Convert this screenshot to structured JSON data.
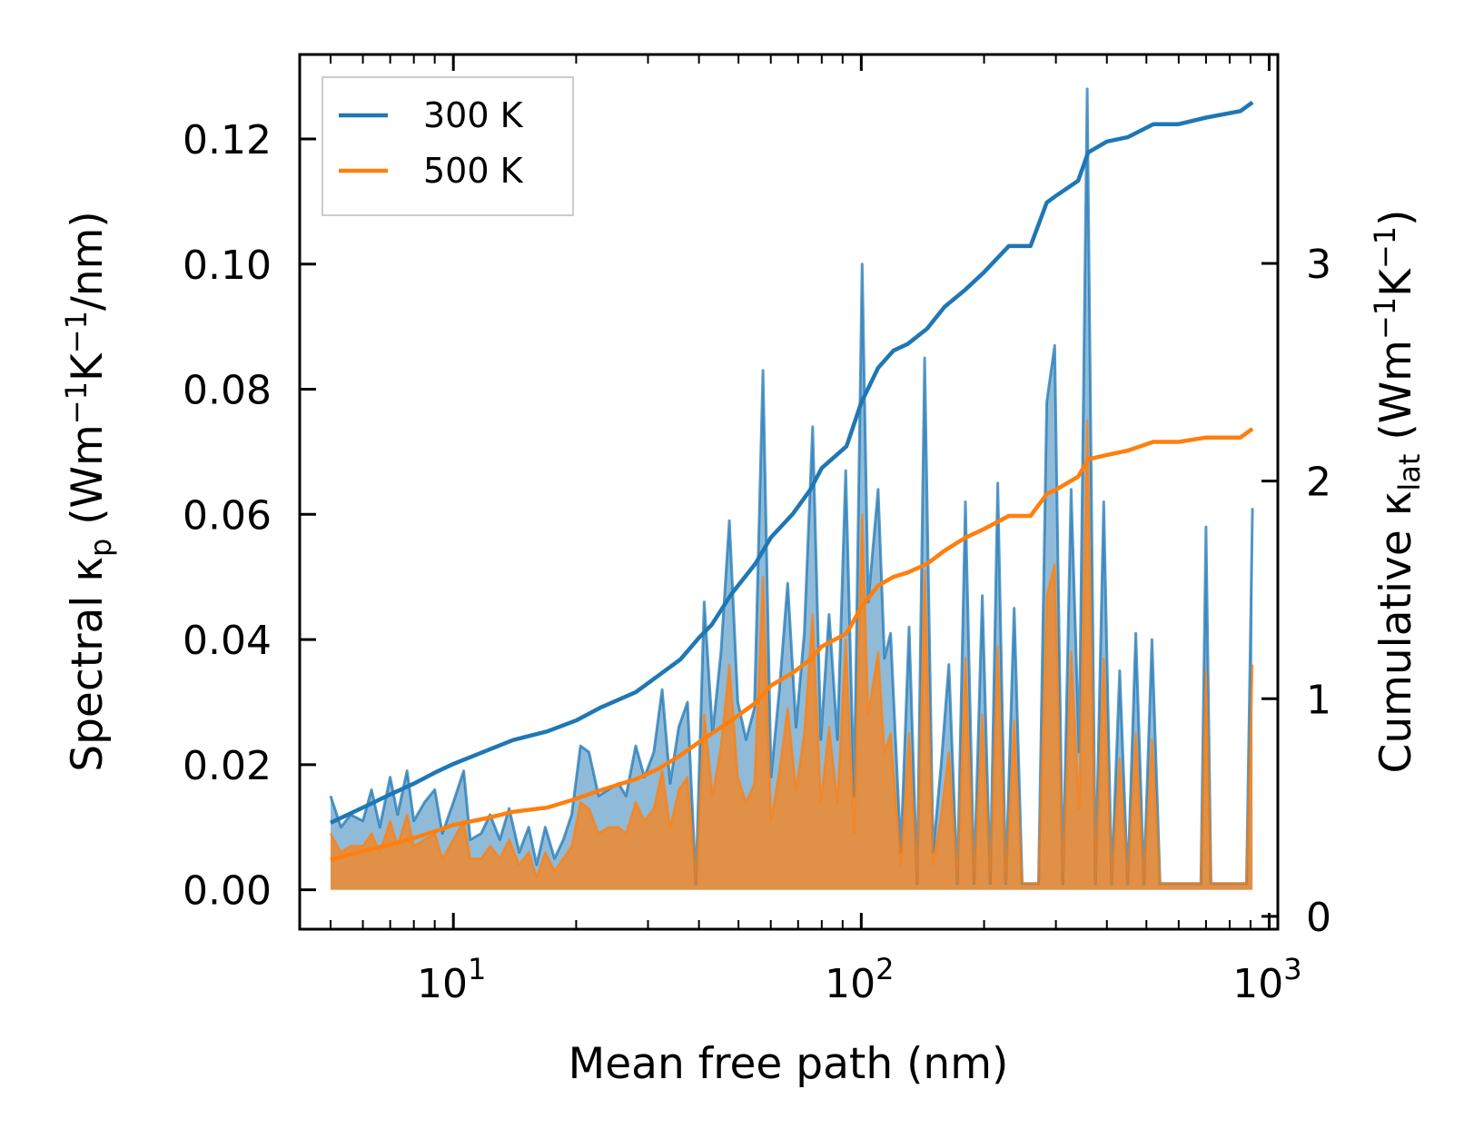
{
  "chart_data": {
    "type": "line",
    "xscale": "log",
    "xlabel": "Mean free path (nm)",
    "ylabel": "Spectral κ_p (Wm⁻¹K⁻¹/nm)",
    "ylabel_right": "Cumulative κ_lat (Wm⁻¹K⁻¹)",
    "xlim": [
      4.2,
      1050
    ],
    "ylim": [
      -0.0063,
      0.1335
    ],
    "y2lim": [
      -0.059,
      3.96
    ],
    "x_ticks": [
      {
        "value": 10,
        "base": "10",
        "exp": "1"
      },
      {
        "value": 100,
        "base": "10",
        "exp": "2"
      },
      {
        "value": 1000,
        "base": "10",
        "exp": "3"
      }
    ],
    "y_ticks": [
      {
        "value": 0.0,
        "label": "0.00"
      },
      {
        "value": 0.02,
        "label": "0.02"
      },
      {
        "value": 0.04,
        "label": "0.04"
      },
      {
        "value": 0.06,
        "label": "0.06"
      },
      {
        "value": 0.08,
        "label": "0.08"
      },
      {
        "value": 0.1,
        "label": "0.10"
      },
      {
        "value": 0.12,
        "label": "0.12"
      }
    ],
    "y2_ticks": [
      {
        "value": 0,
        "label": "0"
      },
      {
        "value": 1,
        "label": "1"
      },
      {
        "value": 2,
        "label": "2"
      },
      {
        "value": 3,
        "label": "3"
      }
    ],
    "legend": {
      "position": "top-left",
      "entries": [
        {
          "label": "300 K",
          "color": "#1f77b4"
        },
        {
          "label": "500 K",
          "color": "#ff7f0e"
        }
      ]
    },
    "spectral": [
      {
        "name": "300 K",
        "color": "#1f77b4",
        "points": [
          [
            5,
            0.015
          ],
          [
            5.3,
            0.01
          ],
          [
            5.6,
            0.012
          ],
          [
            6.0,
            0.011
          ],
          [
            6.3,
            0.016
          ],
          [
            6.6,
            0.01
          ],
          [
            7.0,
            0.018
          ],
          [
            7.3,
            0.012
          ],
          [
            7.7,
            0.019
          ],
          [
            8.0,
            0.011
          ],
          [
            8.5,
            0.014
          ],
          [
            9.0,
            0.016
          ],
          [
            9.4,
            0.009
          ],
          [
            10,
            0.014
          ],
          [
            10.6,
            0.019
          ],
          [
            11.0,
            0.008
          ],
          [
            11.7,
            0.009
          ],
          [
            12.3,
            0.012
          ],
          [
            13.0,
            0.008
          ],
          [
            13.7,
            0.013
          ],
          [
            14.5,
            0.006
          ],
          [
            15.3,
            0.01
          ],
          [
            16.0,
            0.004
          ],
          [
            16.8,
            0.01
          ],
          [
            17.7,
            0.005
          ],
          [
            18.6,
            0.008
          ],
          [
            19.5,
            0.012
          ],
          [
            20.5,
            0.023
          ],
          [
            21.5,
            0.022
          ],
          [
            22.7,
            0.015
          ],
          [
            24.0,
            0.016
          ],
          [
            25.4,
            0.017
          ],
          [
            26.5,
            0.015
          ],
          [
            28.0,
            0.023
          ],
          [
            29.4,
            0.018
          ],
          [
            31.0,
            0.022
          ],
          [
            32.5,
            0.032
          ],
          [
            34.0,
            0.017
          ],
          [
            35.7,
            0.026
          ],
          [
            37.5,
            0.03
          ],
          [
            39.3,
            0.001
          ],
          [
            41.2,
            0.046
          ],
          [
            43.2,
            0.025
          ],
          [
            45.3,
            0.038
          ],
          [
            47.5,
            0.059
          ],
          [
            49.8,
            0.03
          ],
          [
            52.2,
            0.024
          ],
          [
            54.7,
            0.029
          ],
          [
            57.4,
            0.083
          ],
          [
            60.1,
            0.018
          ],
          [
            63.0,
            0.032
          ],
          [
            66.0,
            0.049
          ],
          [
            69.2,
            0.026
          ],
          [
            72.5,
            0.041
          ],
          [
            76.0,
            0.074
          ],
          [
            79.6,
            0.024
          ],
          [
            83.4,
            0.044
          ],
          [
            87.4,
            0.024
          ],
          [
            91.6,
            0.067
          ],
          [
            96.0,
            0.015
          ],
          [
            100.5,
            0.1
          ],
          [
            104.0,
            0.046
          ],
          [
            110.0,
            0.064
          ],
          [
            114.0,
            0.037
          ],
          [
            118.0,
            0.041
          ],
          [
            125.0,
            0.006
          ],
          [
            131.0,
            0.042
          ],
          [
            137.0,
            0.001
          ],
          [
            143.0,
            0.085
          ],
          [
            150.0,
            0.006
          ],
          [
            157.0,
            0.02
          ],
          [
            164.0,
            0.036
          ],
          [
            172.0,
            0.001
          ],
          [
            180.0,
            0.062
          ],
          [
            189.0,
            0.001
          ],
          [
            198.0,
            0.047
          ],
          [
            207.0,
            0.001
          ],
          [
            216.0,
            0.065
          ],
          [
            226.0,
            0.001
          ],
          [
            237.0,
            0.045
          ],
          [
            248.0,
            0.001
          ],
          [
            260.0,
            0.001
          ],
          [
            272.0,
            0.001
          ],
          [
            285.0,
            0.078
          ],
          [
            298.0,
            0.087
          ],
          [
            312.0,
            0.001
          ],
          [
            327.0,
            0.064
          ],
          [
            342.0,
            0.022
          ],
          [
            358.0,
            0.128
          ],
          [
            375.0,
            0.001
          ],
          [
            393.0,
            0.062
          ],
          [
            411.0,
            0.001
          ],
          [
            430.0,
            0.035
          ],
          [
            450.0,
            0.001
          ],
          [
            471.0,
            0.041
          ],
          [
            493.0,
            0.001
          ],
          [
            516.0,
            0.04
          ],
          [
            540.0,
            0.001
          ],
          [
            680.0,
            0.001
          ],
          [
            700.0,
            0.058
          ],
          [
            720.0,
            0.001
          ],
          [
            880.0,
            0.001
          ],
          [
            910.0,
            0.061
          ]
        ]
      },
      {
        "name": "500 K",
        "color": "#ff7f0e",
        "points": [
          [
            5,
            0.009
          ],
          [
            5.3,
            0.006
          ],
          [
            5.6,
            0.007
          ],
          [
            6.0,
            0.007
          ],
          [
            6.3,
            0.009
          ],
          [
            6.6,
            0.006
          ],
          [
            7.0,
            0.011
          ],
          [
            7.3,
            0.007
          ],
          [
            7.7,
            0.012
          ],
          [
            8.0,
            0.007
          ],
          [
            8.5,
            0.008
          ],
          [
            9.0,
            0.009
          ],
          [
            9.4,
            0.005
          ],
          [
            10,
            0.008
          ],
          [
            10.6,
            0.011
          ],
          [
            11.0,
            0.005
          ],
          [
            11.7,
            0.005
          ],
          [
            12.3,
            0.007
          ],
          [
            13.0,
            0.005
          ],
          [
            13.7,
            0.008
          ],
          [
            14.5,
            0.004
          ],
          [
            15.3,
            0.006
          ],
          [
            16.0,
            0.002
          ],
          [
            16.8,
            0.006
          ],
          [
            17.7,
            0.003
          ],
          [
            18.6,
            0.005
          ],
          [
            19.5,
            0.007
          ],
          [
            20.5,
            0.014
          ],
          [
            21.5,
            0.013
          ],
          [
            22.7,
            0.009
          ],
          [
            24.0,
            0.01
          ],
          [
            25.4,
            0.01
          ],
          [
            26.5,
            0.009
          ],
          [
            28.0,
            0.014
          ],
          [
            29.4,
            0.011
          ],
          [
            31.0,
            0.013
          ],
          [
            32.5,
            0.019
          ],
          [
            34.0,
            0.01
          ],
          [
            35.7,
            0.016
          ],
          [
            37.5,
            0.018
          ],
          [
            39.3,
            0.001
          ],
          [
            41.2,
            0.028
          ],
          [
            43.2,
            0.015
          ],
          [
            45.3,
            0.023
          ],
          [
            47.5,
            0.036
          ],
          [
            49.8,
            0.018
          ],
          [
            52.2,
            0.014
          ],
          [
            54.7,
            0.017
          ],
          [
            57.4,
            0.05
          ],
          [
            60.1,
            0.011
          ],
          [
            63.0,
            0.019
          ],
          [
            66.0,
            0.029
          ],
          [
            69.2,
            0.016
          ],
          [
            72.5,
            0.025
          ],
          [
            76.0,
            0.044
          ],
          [
            79.6,
            0.014
          ],
          [
            83.4,
            0.026
          ],
          [
            87.4,
            0.014
          ],
          [
            91.6,
            0.04
          ],
          [
            96.0,
            0.009
          ],
          [
            100.5,
            0.06
          ],
          [
            104.0,
            0.028
          ],
          [
            110.0,
            0.038
          ],
          [
            114.0,
            0.022
          ],
          [
            118.0,
            0.025
          ],
          [
            125.0,
            0.004
          ],
          [
            131.0,
            0.025
          ],
          [
            137.0,
            0.001
          ],
          [
            143.0,
            0.051
          ],
          [
            150.0,
            0.004
          ],
          [
            157.0,
            0.012
          ],
          [
            164.0,
            0.022
          ],
          [
            172.0,
            0.001
          ],
          [
            180.0,
            0.037
          ],
          [
            189.0,
            0.001
          ],
          [
            198.0,
            0.028
          ],
          [
            207.0,
            0.001
          ],
          [
            216.0,
            0.039
          ],
          [
            226.0,
            0.001
          ],
          [
            237.0,
            0.027
          ],
          [
            248.0,
            0.001
          ],
          [
            260.0,
            0.001
          ],
          [
            272.0,
            0.001
          ],
          [
            285.0,
            0.047
          ],
          [
            298.0,
            0.052
          ],
          [
            312.0,
            0.001
          ],
          [
            327.0,
            0.038
          ],
          [
            342.0,
            0.013
          ],
          [
            358.0,
            0.075
          ],
          [
            375.0,
            0.001
          ],
          [
            393.0,
            0.037
          ],
          [
            411.0,
            0.001
          ],
          [
            430.0,
            0.021
          ],
          [
            450.0,
            0.001
          ],
          [
            471.0,
            0.025
          ],
          [
            493.0,
            0.001
          ],
          [
            516.0,
            0.024
          ],
          [
            540.0,
            0.001
          ],
          [
            680.0,
            0.001
          ],
          [
            700.0,
            0.035
          ],
          [
            720.0,
            0.001
          ],
          [
            880.0,
            0.001
          ],
          [
            910.0,
            0.036
          ]
        ]
      }
    ],
    "cumulative": [
      {
        "name": "300 K",
        "color": "#1f77b4",
        "points": [
          [
            5,
            0.43
          ],
          [
            6,
            0.5
          ],
          [
            7,
            0.56
          ],
          [
            8,
            0.61
          ],
          [
            9,
            0.66
          ],
          [
            10,
            0.7
          ],
          [
            12,
            0.76
          ],
          [
            14,
            0.81
          ],
          [
            17,
            0.85
          ],
          [
            20,
            0.9
          ],
          [
            23,
            0.96
          ],
          [
            28,
            1.03
          ],
          [
            32,
            1.11
          ],
          [
            36,
            1.18
          ],
          [
            40,
            1.28
          ],
          [
            43,
            1.34
          ],
          [
            48,
            1.48
          ],
          [
            55,
            1.62
          ],
          [
            60,
            1.74
          ],
          [
            68,
            1.85
          ],
          [
            75,
            1.96
          ],
          [
            80,
            2.06
          ],
          [
            92,
            2.16
          ],
          [
            100,
            2.36
          ],
          [
            110,
            2.52
          ],
          [
            120,
            2.6
          ],
          [
            130,
            2.63
          ],
          [
            145,
            2.7
          ],
          [
            160,
            2.8
          ],
          [
            180,
            2.88
          ],
          [
            200,
            2.96
          ],
          [
            230,
            3.08
          ],
          [
            260,
            3.08
          ],
          [
            285,
            3.28
          ],
          [
            300,
            3.31
          ],
          [
            340,
            3.38
          ],
          [
            360,
            3.51
          ],
          [
            400,
            3.56
          ],
          [
            450,
            3.58
          ],
          [
            520,
            3.64
          ],
          [
            600,
            3.64
          ],
          [
            700,
            3.67
          ],
          [
            850,
            3.7
          ],
          [
            910,
            3.74
          ]
        ]
      },
      {
        "name": "500 K",
        "color": "#ff7f0e",
        "points": [
          [
            5,
            0.26
          ],
          [
            6,
            0.3
          ],
          [
            7,
            0.33
          ],
          [
            8,
            0.36
          ],
          [
            9,
            0.39
          ],
          [
            10,
            0.42
          ],
          [
            12,
            0.45
          ],
          [
            14,
            0.48
          ],
          [
            17,
            0.5
          ],
          [
            20,
            0.54
          ],
          [
            23,
            0.58
          ],
          [
            28,
            0.63
          ],
          [
            32,
            0.68
          ],
          [
            36,
            0.74
          ],
          [
            40,
            0.8
          ],
          [
            43,
            0.84
          ],
          [
            48,
            0.9
          ],
          [
            55,
            0.98
          ],
          [
            60,
            1.06
          ],
          [
            68,
            1.12
          ],
          [
            75,
            1.18
          ],
          [
            80,
            1.24
          ],
          [
            92,
            1.3
          ],
          [
            100,
            1.42
          ],
          [
            110,
            1.52
          ],
          [
            120,
            1.56
          ],
          [
            130,
            1.58
          ],
          [
            145,
            1.62
          ],
          [
            160,
            1.68
          ],
          [
            180,
            1.74
          ],
          [
            200,
            1.78
          ],
          [
            230,
            1.84
          ],
          [
            260,
            1.84
          ],
          [
            285,
            1.94
          ],
          [
            300,
            1.96
          ],
          [
            340,
            2.02
          ],
          [
            360,
            2.1
          ],
          [
            400,
            2.12
          ],
          [
            450,
            2.14
          ],
          [
            520,
            2.18
          ],
          [
            600,
            2.18
          ],
          [
            700,
            2.2
          ],
          [
            850,
            2.2
          ],
          [
            910,
            2.24
          ]
        ]
      }
    ]
  }
}
